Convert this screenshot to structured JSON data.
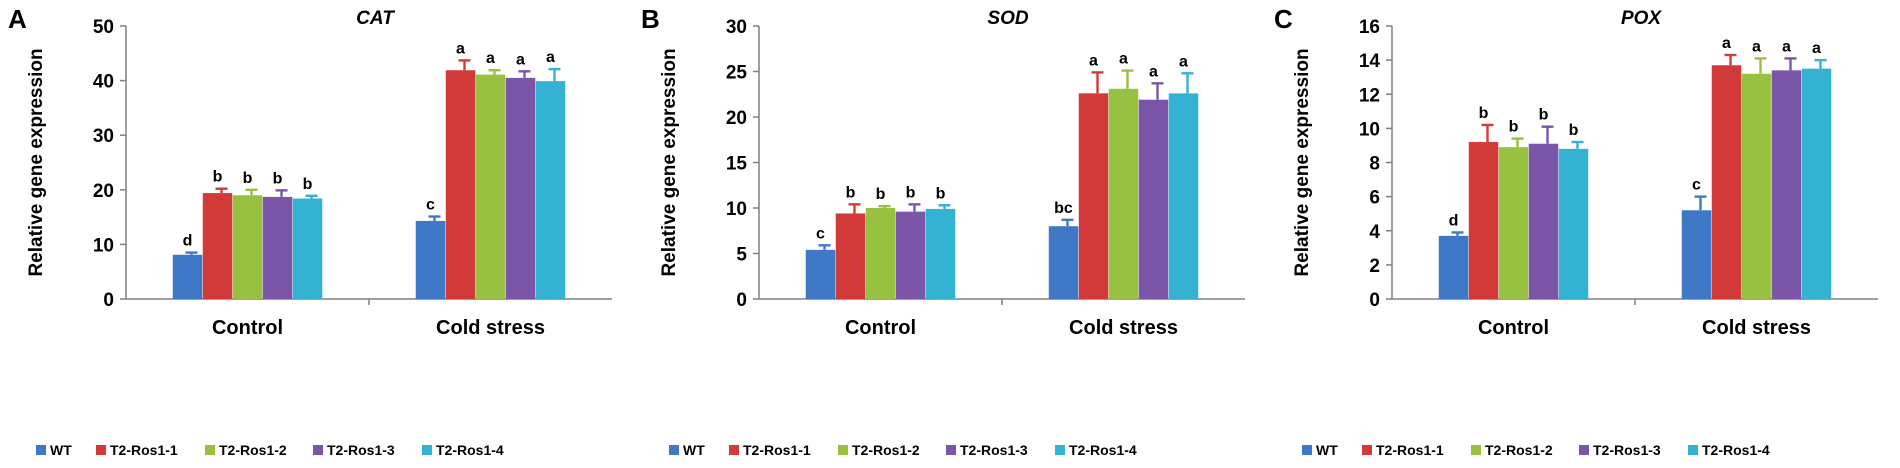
{
  "colors": {
    "WT": "#3f78c6",
    "T2-Ros1-1": "#d23a3a",
    "T2-Ros1-2": "#98c141",
    "T2-Ros1-3": "#7b55a8",
    "T2-Ros1-4": "#33b2d4",
    "axis": "#808080",
    "text": "#000000"
  },
  "chart_data": [
    {
      "type": "bar",
      "panel_label": "A",
      "title": "CAT",
      "ylabel": "Relative gene expression",
      "xlabel": "",
      "ylim": [
        0,
        50
      ],
      "yticks": [
        0,
        10,
        20,
        30,
        40,
        50
      ],
      "categories": [
        "Control",
        "Cold stress"
      ],
      "series": [
        {
          "name": "WT",
          "values": [
            8.1,
            14.3
          ],
          "errors": [
            0.4,
            0.8
          ],
          "labels": [
            "d",
            "c"
          ]
        },
        {
          "name": "T2-Ros1-1",
          "values": [
            19.4,
            41.9
          ],
          "errors": [
            0.8,
            1.8
          ],
          "labels": [
            "b",
            "a"
          ]
        },
        {
          "name": "T2-Ros1-2",
          "values": [
            19.0,
            41.1
          ],
          "errors": [
            1.0,
            0.8
          ],
          "labels": [
            "b",
            "a"
          ]
        },
        {
          "name": "T2-Ros1-3",
          "values": [
            18.7,
            40.5
          ],
          "errors": [
            1.2,
            1.2
          ],
          "labels": [
            "b",
            "a"
          ]
        },
        {
          "name": "T2-Ros1-4",
          "values": [
            18.4,
            39.9
          ],
          "errors": [
            0.5,
            2.2
          ],
          "labels": [
            "b",
            "a"
          ]
        }
      ],
      "legend": "bottom"
    },
    {
      "type": "bar",
      "panel_label": "B",
      "title": "SOD",
      "ylabel": "Relative gene expression",
      "xlabel": "",
      "ylim": [
        0,
        30
      ],
      "yticks": [
        0,
        5,
        10,
        15,
        20,
        25,
        30
      ],
      "categories": [
        "Control",
        "Cold stress"
      ],
      "series": [
        {
          "name": "WT",
          "values": [
            5.4,
            8.0
          ],
          "errors": [
            0.5,
            0.7
          ],
          "labels": [
            "c",
            "bc"
          ]
        },
        {
          "name": "T2-Ros1-1",
          "values": [
            9.4,
            22.6
          ],
          "errors": [
            1.0,
            2.3
          ],
          "labels": [
            "b",
            "a"
          ]
        },
        {
          "name": "T2-Ros1-2",
          "values": [
            10.0,
            23.1
          ],
          "errors": [
            0.2,
            2.0
          ],
          "labels": [
            "b",
            "a"
          ]
        },
        {
          "name": "T2-Ros1-3",
          "values": [
            9.6,
            21.9
          ],
          "errors": [
            0.8,
            1.8
          ],
          "labels": [
            "b",
            "a"
          ]
        },
        {
          "name": "T2-Ros1-4",
          "values": [
            9.9,
            22.6
          ],
          "errors": [
            0.4,
            2.2
          ],
          "labels": [
            "b",
            "a"
          ]
        }
      ],
      "legend": "bottom"
    },
    {
      "type": "bar",
      "panel_label": "C",
      "title": "POX",
      "ylabel": "Relative gene expression",
      "xlabel": "",
      "ylim": [
        0,
        16
      ],
      "yticks": [
        0,
        2,
        4,
        6,
        8,
        10,
        12,
        14,
        16
      ],
      "categories": [
        "Control",
        "Cold stress"
      ],
      "series": [
        {
          "name": "WT",
          "values": [
            3.7,
            5.2
          ],
          "errors": [
            0.2,
            0.8
          ],
          "labels": [
            "d",
            "c"
          ]
        },
        {
          "name": "T2-Ros1-1",
          "values": [
            9.2,
            13.7
          ],
          "errors": [
            1.0,
            0.6
          ],
          "labels": [
            "b",
            "a"
          ]
        },
        {
          "name": "T2-Ros1-2",
          "values": [
            8.9,
            13.2
          ],
          "errors": [
            0.5,
            0.9
          ],
          "labels": [
            "b",
            "a"
          ]
        },
        {
          "name": "T2-Ros1-3",
          "values": [
            9.1,
            13.4
          ],
          "errors": [
            1.0,
            0.7
          ],
          "labels": [
            "b",
            "a"
          ]
        },
        {
          "name": "T2-Ros1-4",
          "values": [
            8.8,
            13.5
          ],
          "errors": [
            0.4,
            0.5
          ],
          "labels": [
            "b",
            "a"
          ]
        }
      ],
      "legend": "bottom"
    }
  ]
}
